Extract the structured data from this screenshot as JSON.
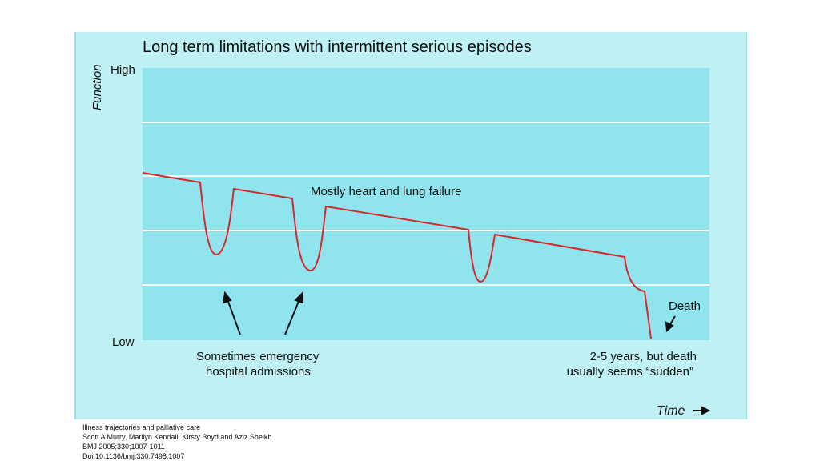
{
  "title": "Long term limitations with intermittent serious episodes",
  "y_axis": {
    "label": "Function",
    "high": "High",
    "low": "Low"
  },
  "x_axis": {
    "label": "Time"
  },
  "annotations": {
    "curve": "Mostly heart and lung failure",
    "admissions": [
      "Sometimes emergency",
      "hospital admissions"
    ],
    "timeline": [
      "2-5 years, but death",
      "usually seems “sudden”"
    ],
    "death": "Death"
  },
  "citation": [
    "Illness trajectories and palliative care",
    "Scott A Murry, Marilyn Kendall, Kirsty Boyd and Aziz Sheikh",
    "BMJ 2005;330;1007-1011",
    "Doi:10.1136/bmj.330.7498.1007"
  ]
}
